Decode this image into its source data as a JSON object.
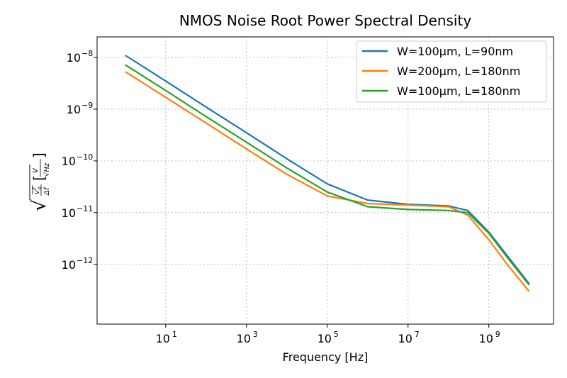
{
  "chart_data": {
    "type": "line",
    "title": "NMOS Noise Root Power Spectral Density",
    "xlabel": "Frequency [Hz]",
    "ylabel": "sqrt(vo^2 / Δf) [V / sqrt(Hz)]",
    "xscale": "log",
    "yscale": "log",
    "xlim": [
      0.2,
      40000000000
    ],
    "ylim": [
      7e-14,
      2.5e-08
    ],
    "grid": true,
    "legend_position": "top-right",
    "x_ticks": [
      {
        "value": 10,
        "label": "10",
        "exp": "1"
      },
      {
        "value": 1000,
        "label": "10",
        "exp": "3"
      },
      {
        "value": 100000,
        "label": "10",
        "exp": "5"
      },
      {
        "value": 10000000,
        "label": "10",
        "exp": "7"
      },
      {
        "value": 1000000000,
        "label": "10",
        "exp": "9"
      }
    ],
    "y_ticks": [
      {
        "value": 1e-08,
        "label": "10",
        "exp": "−8"
      },
      {
        "value": 1e-09,
        "label": "10",
        "exp": "−9"
      },
      {
        "value": 1e-10,
        "label": "10",
        "exp": "−10"
      },
      {
        "value": 1e-11,
        "label": "10",
        "exp": "−11"
      },
      {
        "value": 1e-12,
        "label": "10",
        "exp": "−12"
      }
    ],
    "series": [
      {
        "name": "W=100μm, L=90nm",
        "color": "#1f77b4",
        "x": [
          1,
          10,
          100,
          1000,
          10000,
          100000,
          1000000,
          10000000,
          100000000,
          300000000,
          1000000000,
          3000000000,
          10000000000
        ],
        "y": [
          1.1e-08,
          3.5e-09,
          1.1e-09,
          3.5e-10,
          1.1e-10,
          3.6e-11,
          1.75e-11,
          1.45e-11,
          1.35e-11,
          1.1e-11,
          4.2e-12,
          1.4e-12,
          4.2e-13
        ]
      },
      {
        "name": "W=200μm, L=180nm",
        "color": "#ff7f0e",
        "x": [
          1,
          10,
          100,
          1000,
          10000,
          100000,
          1000000,
          10000000,
          100000000,
          300000000,
          1000000000,
          3000000000,
          10000000000
        ],
        "y": [
          5.3e-09,
          1.7e-09,
          5.4e-10,
          1.7e-10,
          5.5e-11,
          2.1e-11,
          1.5e-11,
          1.4e-11,
          1.3e-11,
          9e-12,
          3e-12,
          9.5e-13,
          3e-13
        ]
      },
      {
        "name": "W=100μm, L=180nm",
        "color": "#2ca02c",
        "x": [
          1,
          10,
          100,
          1000,
          10000,
          100000,
          1000000,
          10000000,
          100000000,
          300000000,
          1000000000,
          3000000000,
          10000000000
        ],
        "y": [
          7.2e-09,
          2.3e-09,
          7.2e-10,
          2.3e-10,
          7.3e-11,
          2.5e-11,
          1.3e-11,
          1.15e-11,
          1.1e-11,
          1e-11,
          4e-12,
          1.3e-12,
          4e-13
        ]
      }
    ]
  }
}
